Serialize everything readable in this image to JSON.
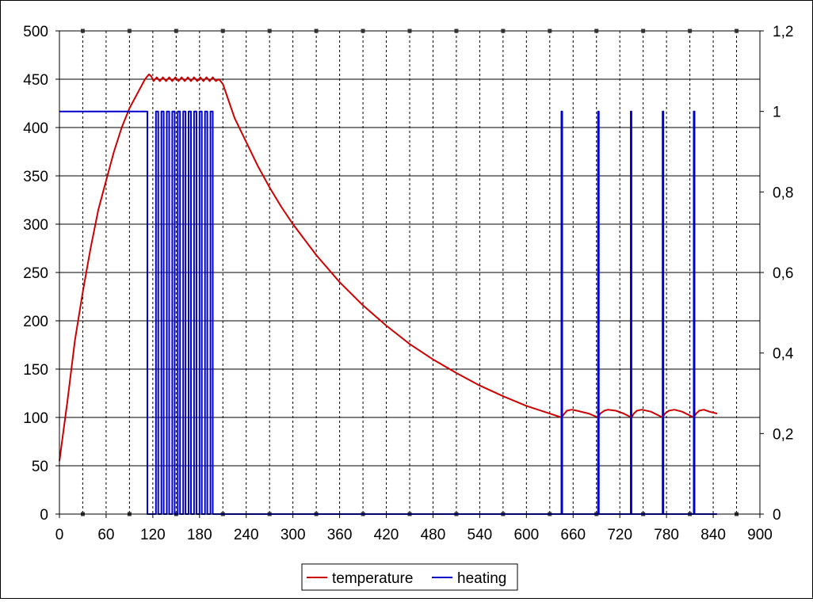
{
  "chart_data": {
    "type": "line",
    "x_axis": {
      "min": 0,
      "max": 900,
      "step": 60,
      "tick_labels": [
        "0",
        "60",
        "120",
        "180",
        "240",
        "300",
        "360",
        "420",
        "480",
        "540",
        "600",
        "660",
        "720",
        "780",
        "840",
        "900"
      ]
    },
    "y_axis_left": {
      "min": 0,
      "max": 500,
      "step": 50,
      "tick_labels": [
        "0",
        "50",
        "100",
        "150",
        "200",
        "250",
        "300",
        "350",
        "400",
        "450",
        "500"
      ]
    },
    "y_axis_right": {
      "min": 0,
      "max": 1.2,
      "step": 0.2,
      "tick_labels": [
        "0",
        "0,2",
        "0,4",
        "0,6",
        "0,8",
        "1",
        "1,2"
      ]
    },
    "grid": {
      "horizontal": "solid",
      "vertical": "dashed"
    },
    "legend": {
      "position": "bottom-center"
    },
    "series": [
      {
        "name": "temperature",
        "color": "#cc0000",
        "axis": "left",
        "points": [
          [
            0,
            55
          ],
          [
            10,
            115
          ],
          [
            20,
            180
          ],
          [
            30,
            230
          ],
          [
            40,
            275
          ],
          [
            50,
            315
          ],
          [
            60,
            345
          ],
          [
            70,
            375
          ],
          [
            80,
            400
          ],
          [
            90,
            420
          ],
          [
            100,
            435
          ],
          [
            110,
            450
          ],
          [
            115,
            455
          ],
          [
            118,
            453
          ],
          [
            121,
            448
          ],
          [
            125,
            452
          ],
          [
            129,
            448
          ],
          [
            133,
            452
          ],
          [
            137,
            448
          ],
          [
            141,
            452
          ],
          [
            145,
            448
          ],
          [
            149,
            452
          ],
          [
            153,
            448
          ],
          [
            157,
            452
          ],
          [
            161,
            448
          ],
          [
            165,
            452
          ],
          [
            169,
            448
          ],
          [
            173,
            452
          ],
          [
            177,
            448
          ],
          [
            181,
            452
          ],
          [
            185,
            448
          ],
          [
            189,
            452
          ],
          [
            193,
            448
          ],
          [
            197,
            452
          ],
          [
            201,
            448
          ],
          [
            205,
            450
          ],
          [
            210,
            445
          ],
          [
            225,
            410
          ],
          [
            240,
            385
          ],
          [
            255,
            360
          ],
          [
            270,
            338
          ],
          [
            285,
            318
          ],
          [
            300,
            300
          ],
          [
            330,
            268
          ],
          [
            360,
            240
          ],
          [
            390,
            216
          ],
          [
            420,
            195
          ],
          [
            450,
            176
          ],
          [
            480,
            160
          ],
          [
            510,
            146
          ],
          [
            540,
            133
          ],
          [
            570,
            122
          ],
          [
            600,
            112
          ],
          [
            630,
            104
          ],
          [
            645,
            100
          ],
          [
            648,
            103
          ],
          [
            652,
            107
          ],
          [
            658,
            108
          ],
          [
            665,
            107
          ],
          [
            680,
            104
          ],
          [
            692,
            100
          ],
          [
            695,
            104
          ],
          [
            700,
            107
          ],
          [
            705,
            108
          ],
          [
            715,
            107
          ],
          [
            725,
            104
          ],
          [
            735,
            100
          ],
          [
            738,
            104
          ],
          [
            742,
            107
          ],
          [
            748,
            108
          ],
          [
            760,
            106
          ],
          [
            775,
            100
          ],
          [
            778,
            104
          ],
          [
            783,
            107
          ],
          [
            790,
            108
          ],
          [
            800,
            106
          ],
          [
            815,
            100
          ],
          [
            818,
            104
          ],
          [
            822,
            107
          ],
          [
            828,
            108
          ],
          [
            835,
            106
          ],
          [
            845,
            104
          ]
        ]
      },
      {
        "name": "heating",
        "color": "#0000cc",
        "axis": "right",
        "points": [
          [
            0,
            1
          ],
          [
            113,
            1
          ],
          [
            113,
            0
          ],
          [
            124,
            0
          ],
          [
            124,
            1
          ],
          [
            127,
            1
          ],
          [
            127,
            0
          ],
          [
            131,
            0
          ],
          [
            131,
            1
          ],
          [
            134,
            1
          ],
          [
            134,
            0
          ],
          [
            138,
            0
          ],
          [
            138,
            1
          ],
          [
            141,
            1
          ],
          [
            141,
            0
          ],
          [
            145,
            0
          ],
          [
            145,
            1
          ],
          [
            148,
            1
          ],
          [
            148,
            0
          ],
          [
            152,
            0
          ],
          [
            152,
            1
          ],
          [
            155,
            1
          ],
          [
            155,
            0
          ],
          [
            159,
            0
          ],
          [
            159,
            1
          ],
          [
            162,
            1
          ],
          [
            162,
            0
          ],
          [
            166,
            0
          ],
          [
            166,
            1
          ],
          [
            169,
            1
          ],
          [
            169,
            0
          ],
          [
            173,
            0
          ],
          [
            173,
            1
          ],
          [
            176,
            1
          ],
          [
            176,
            0
          ],
          [
            180,
            0
          ],
          [
            180,
            1
          ],
          [
            183,
            1
          ],
          [
            183,
            0
          ],
          [
            187,
            0
          ],
          [
            187,
            1
          ],
          [
            190,
            1
          ],
          [
            190,
            0
          ],
          [
            194,
            0
          ],
          [
            194,
            1
          ],
          [
            197,
            1
          ],
          [
            197,
            0
          ],
          [
            645,
            0
          ],
          [
            645,
            1
          ],
          [
            646,
            1
          ],
          [
            646,
            0
          ],
          [
            692,
            0
          ],
          [
            692,
            1
          ],
          [
            693,
            1
          ],
          [
            693,
            0
          ],
          [
            734,
            0
          ],
          [
            734,
            1
          ],
          [
            735,
            1
          ],
          [
            735,
            0
          ],
          [
            775,
            0
          ],
          [
            775,
            1
          ],
          [
            776,
            1
          ],
          [
            776,
            0
          ],
          [
            815,
            0
          ],
          [
            815,
            1
          ],
          [
            816,
            1
          ],
          [
            816,
            0
          ],
          [
            845,
            0
          ]
        ]
      }
    ]
  }
}
